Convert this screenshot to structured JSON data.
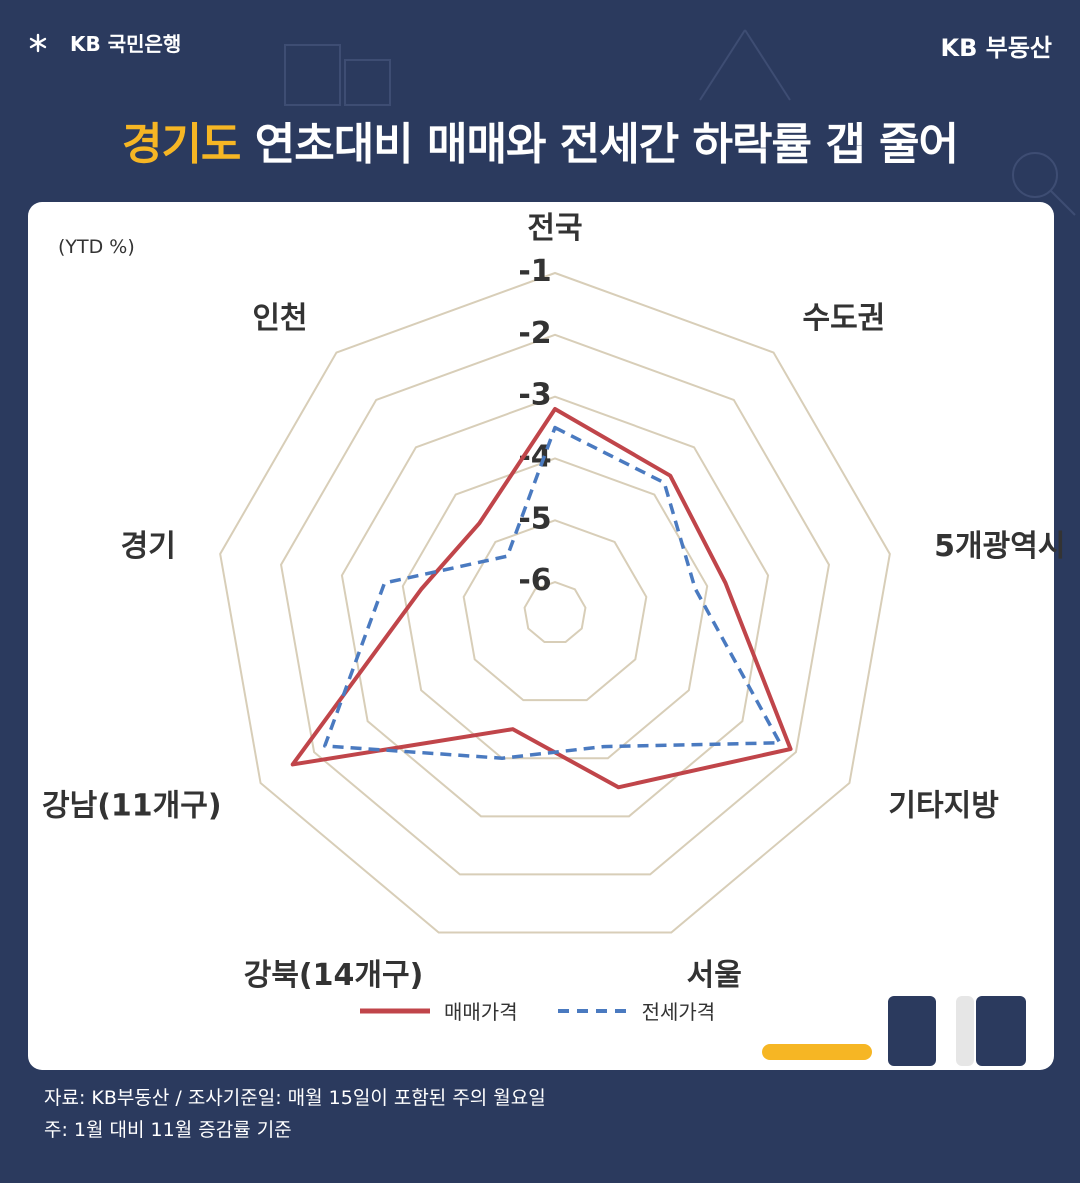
{
  "header": {
    "left_brand": "KB 국민은행",
    "right_brand": "KB 부동산",
    "title_highlight": "경기도",
    "title_rest": " 연초대비 매매와 전세간 하락률 갭 줄어"
  },
  "colors": {
    "background": "#2b3a5e",
    "accent": "#f6b624",
    "sale_line": "#c0454a",
    "jeonse_line": "#4a7ac0",
    "grid": "#d8ceb8"
  },
  "chart_data": {
    "type": "radar",
    "unit_label": "(YTD %)",
    "axes": [
      "전국",
      "수도권",
      "5개광역시",
      "기타지방",
      "서울",
      "강북(14개구)",
      "강남(11개구)",
      "경기",
      "인천"
    ],
    "r_ticks": [
      "-1",
      "-2",
      "-3",
      "-4",
      "-5",
      "-6"
    ],
    "r_tick_values": [
      -1,
      -2,
      -3,
      -4,
      -5,
      -6
    ],
    "rlim": [
      -6.5,
      -1
    ],
    "series": [
      {
        "name": "매매가격",
        "style": "solid",
        "values": [
          -3.2,
          -3.6,
          -3.7,
          -2.1,
          -3.5,
          -4.5,
          -1.6,
          -4.3,
          -4.6
        ]
      },
      {
        "name": "전세가격",
        "style": "dashed",
        "values": [
          -3.5,
          -3.75,
          -4.2,
          -2.3,
          -4.2,
          -4.0,
          -2.2,
          -3.7,
          -5.3
        ]
      }
    ],
    "legend_position": "bottom-center"
  },
  "footer": {
    "source": "자료: KB부동산 / 조사기준일: 매월 15일이 포함된 주의 월요일",
    "note": "주: 1월 대비 11월 증감률 기준"
  }
}
